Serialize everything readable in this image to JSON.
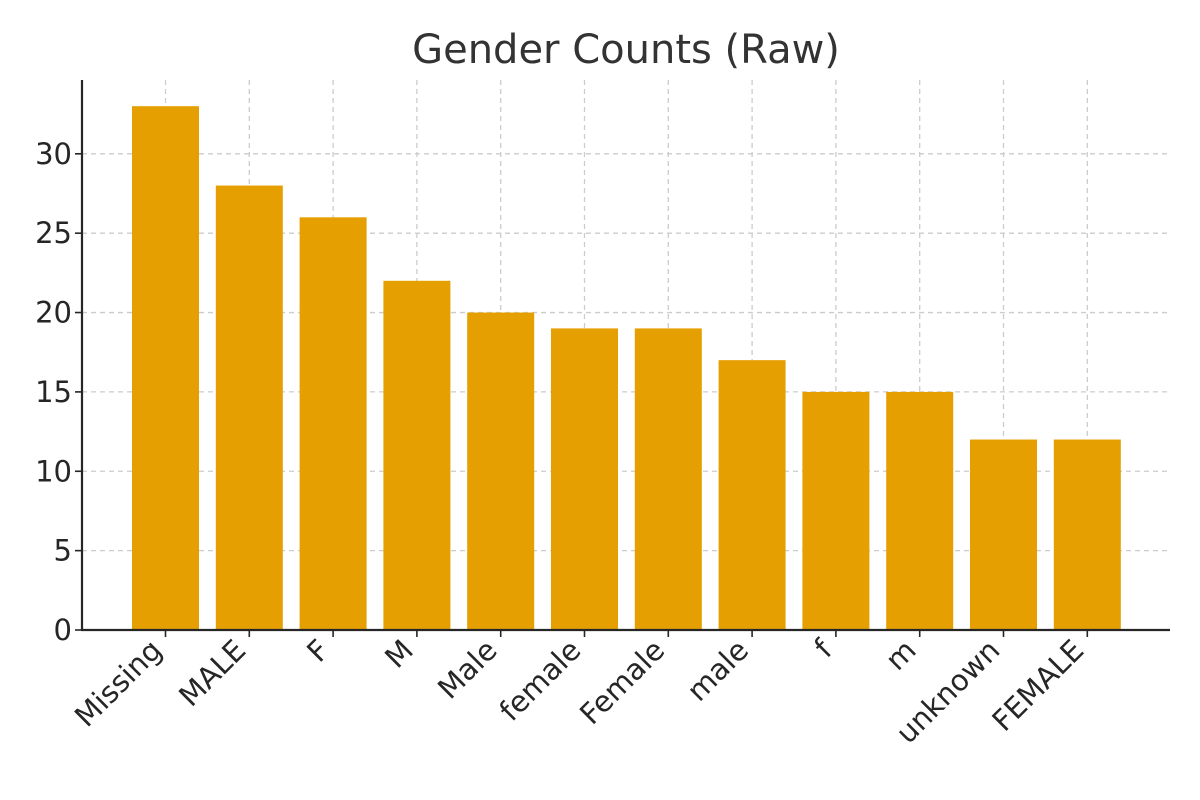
{
  "chart_data": {
    "type": "bar",
    "title": "Gender Counts (Raw)",
    "xlabel": "",
    "ylabel": "",
    "categories": [
      "Missing",
      "MALE",
      "F",
      "M",
      "Male",
      "female",
      "Female",
      "male",
      "f",
      "m",
      "unknown",
      "FEMALE"
    ],
    "values": [
      33,
      28,
      26,
      22,
      20,
      19,
      19,
      17,
      15,
      15,
      12,
      12
    ],
    "ylim": [
      0,
      34.65
    ],
    "yticks": [
      0,
      5,
      10,
      15,
      20,
      25,
      30
    ],
    "grid": true,
    "bar_color": "#E69F00"
  }
}
